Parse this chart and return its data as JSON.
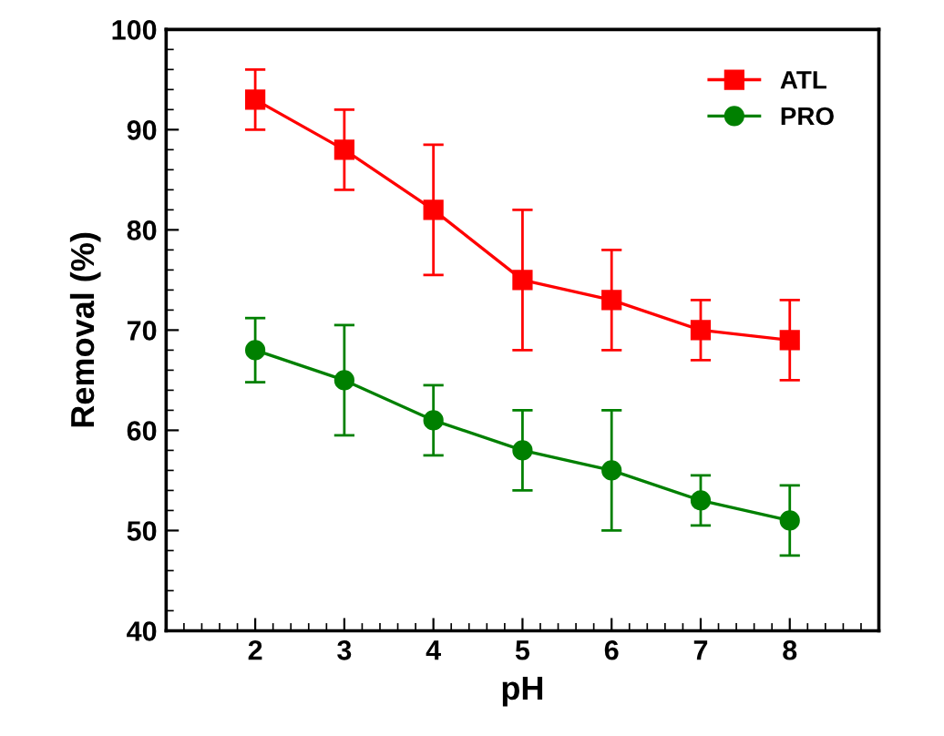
{
  "chart_data": {
    "type": "line",
    "xlabel": "pH",
    "ylabel": "Removal (%)",
    "x": [
      2,
      3,
      4,
      5,
      6,
      7,
      8
    ],
    "series": [
      {
        "name": "ATL",
        "color": "#ff0000",
        "marker": "square",
        "values": [
          93,
          88,
          82,
          75,
          73,
          70,
          69
        ],
        "errors": [
          3,
          4,
          6.5,
          7,
          5,
          3,
          4
        ]
      },
      {
        "name": "PRO",
        "color": "#008000",
        "marker": "circle",
        "values": [
          68,
          65,
          61,
          58,
          56,
          53,
          51
        ],
        "errors": [
          3.2,
          5.5,
          3.5,
          4,
          6,
          2.5,
          3.5
        ]
      }
    ],
    "xlim": [
      1,
      9
    ],
    "xticks": [
      2,
      3,
      4,
      5,
      6,
      7,
      8
    ],
    "ylim": [
      40,
      100
    ],
    "yticks": [
      40,
      50,
      60,
      70,
      80,
      90,
      100
    ],
    "grid": false,
    "legend": "top right",
    "line_style": "solid"
  }
}
